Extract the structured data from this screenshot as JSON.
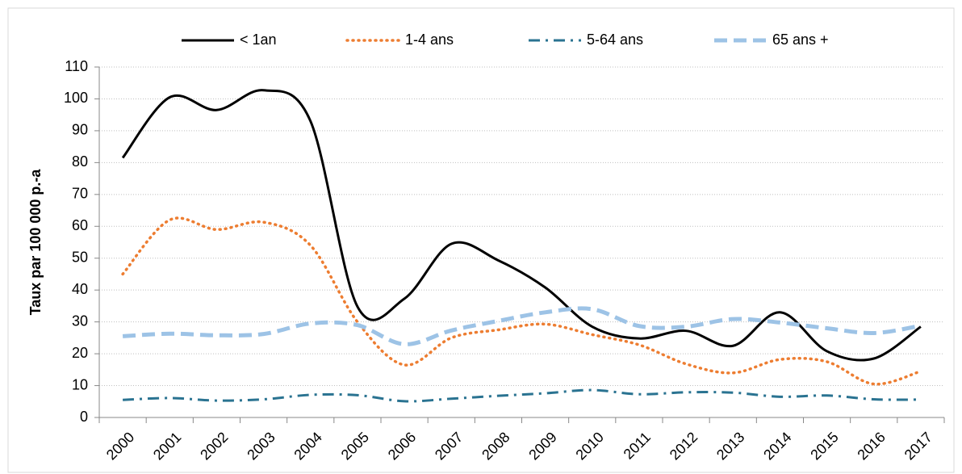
{
  "chart_data": {
    "type": "line",
    "y_label": "Taux par 100 000 p.-a",
    "categories": [
      "2000",
      "2001",
      "2002",
      "2003",
      "2004",
      "2005",
      "2006",
      "2007",
      "2008",
      "2009",
      "2010",
      "2011",
      "2012",
      "2013",
      "2014",
      "2015",
      "2016",
      "2017"
    ],
    "series": [
      {
        "name": "< 1an",
        "color": "#000000",
        "style": "solid",
        "values": [
          81.5,
          100.5,
          96.5,
          102.7,
          93,
          34.8,
          37.3,
          54.5,
          49.3,
          40.8,
          28.5,
          24.8,
          27.2,
          22.5,
          33,
          20.8,
          18.5,
          28.5
        ]
      },
      {
        "name": "1-4 ans",
        "color": "#ed7d31",
        "style": "dotted",
        "values": [
          45,
          62,
          59,
          61.3,
          54,
          30,
          16.5,
          25,
          27.5,
          29.3,
          26,
          22.8,
          16.8,
          14,
          18.2,
          17.5,
          10.5,
          14.5
        ]
      },
      {
        "name": "5-64 ans",
        "color": "#2a7391",
        "style": "dashdot",
        "values": [
          5.5,
          6.1,
          5.3,
          5.7,
          7.1,
          7,
          5.1,
          5.9,
          6.8,
          7.6,
          8.6,
          7.3,
          7.9,
          7.8,
          6.5,
          6.9,
          5.7,
          5.6
        ]
      },
      {
        "name": "65 ans +",
        "color": "#9dc3e6",
        "style": "dashed",
        "values": [
          25.5,
          26.3,
          25.8,
          26.2,
          29.5,
          29,
          23,
          27.3,
          30.3,
          33,
          34,
          28.7,
          28.5,
          30.9,
          29.8,
          28,
          26.5,
          28.8
        ]
      }
    ],
    "ylim": [
      0,
      110
    ],
    "yticks": [
      0,
      10,
      20,
      30,
      40,
      50,
      60,
      70,
      80,
      90,
      100,
      110
    ],
    "grid": true,
    "legend": "top"
  }
}
